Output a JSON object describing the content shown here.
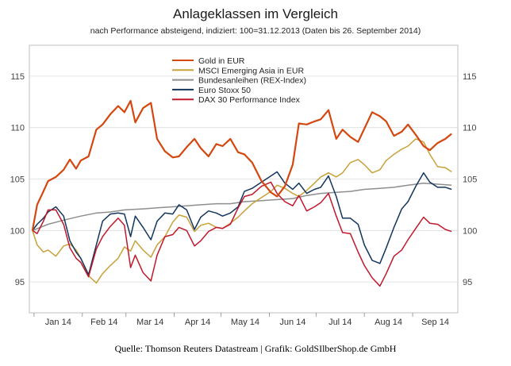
{
  "chart_data": {
    "type": "line",
    "title": "Anlageklassen im Vergleich",
    "subtitle": "nach Performance absteigend, indiziert: 100=31.12.2013 (Daten bis 26. September 2014)",
    "source": "Quelle: Thomson Reuters Datastream  | Grafik: GoldSIlberShop.de GmbH",
    "xlabel": "",
    "ylabel": "",
    "ylim": [
      92,
      118
    ],
    "yticks": [
      95,
      100,
      105,
      110,
      115
    ],
    "x_start": "2013-12-31",
    "x_end": "2014-09-26",
    "month_labels": [
      "Jan 14",
      "Feb 14",
      "Mar 14",
      "Apr 14",
      "May 14",
      "Jun 14",
      "Jul 14",
      "Aug 14",
      "Sep 14"
    ],
    "grid": true,
    "legend_position": "top-center",
    "series": [
      {
        "name": "Gold in EUR",
        "color": "#d4470f",
        "x": [
          "2013-12-31",
          "2014-01-03",
          "2014-01-07",
          "2014-01-10",
          "2014-01-15",
          "2014-01-20",
          "2014-01-24",
          "2014-01-28",
          "2014-01-31",
          "2014-02-05",
          "2014-02-10",
          "2014-02-14",
          "2014-02-19",
          "2014-02-24",
          "2014-02-28",
          "2014-03-04",
          "2014-03-07",
          "2014-03-12",
          "2014-03-17",
          "2014-03-21",
          "2014-03-26",
          "2014-03-31",
          "2014-04-04",
          "2014-04-09",
          "2014-04-14",
          "2014-04-18",
          "2014-04-23",
          "2014-04-28",
          "2014-05-02",
          "2014-05-07",
          "2014-05-12",
          "2014-05-16",
          "2014-05-21",
          "2014-05-27",
          "2014-06-02",
          "2014-06-06",
          "2014-06-11",
          "2014-06-16",
          "2014-06-20",
          "2014-06-25",
          "2014-06-30",
          "2014-07-04",
          "2014-07-09",
          "2014-07-14",
          "2014-07-18",
          "2014-07-23",
          "2014-07-28",
          "2014-08-01",
          "2014-08-06",
          "2014-08-11",
          "2014-08-15",
          "2014-08-20",
          "2014-08-25",
          "2014-08-29",
          "2014-09-03",
          "2014-09-08",
          "2014-09-12",
          "2014-09-17",
          "2014-09-22",
          "2014-09-26"
        ],
        "values": [
          100.0,
          102.5,
          103.8,
          104.8,
          105.2,
          105.9,
          106.9,
          106.0,
          106.8,
          107.2,
          109.8,
          110.3,
          111.3,
          112.1,
          111.5,
          112.6,
          110.5,
          111.9,
          112.4,
          108.9,
          107.7,
          107.1,
          107.2,
          108.1,
          108.9,
          108.0,
          107.2,
          108.4,
          108.2,
          108.9,
          107.6,
          107.4,
          106.6,
          104.8,
          103.7,
          103.3,
          104.3,
          106.4,
          110.4,
          110.3,
          110.6,
          110.8,
          111.7,
          108.9,
          109.8,
          109.1,
          108.6,
          109.9,
          111.5,
          111.1,
          110.6,
          109.2,
          109.6,
          110.3,
          109.3,
          108.2,
          107.8,
          108.5,
          108.9,
          109.4
        ]
      },
      {
        "name": "MSCI Emerging Asia in EUR",
        "color": "#c8a139",
        "x": [
          "2013-12-31",
          "2014-01-03",
          "2014-01-07",
          "2014-01-10",
          "2014-01-15",
          "2014-01-20",
          "2014-01-24",
          "2014-01-28",
          "2014-01-31",
          "2014-02-05",
          "2014-02-10",
          "2014-02-14",
          "2014-02-19",
          "2014-02-24",
          "2014-02-28",
          "2014-03-04",
          "2014-03-07",
          "2014-03-12",
          "2014-03-17",
          "2014-03-21",
          "2014-03-26",
          "2014-03-31",
          "2014-04-04",
          "2014-04-09",
          "2014-04-14",
          "2014-04-18",
          "2014-04-23",
          "2014-04-28",
          "2014-05-02",
          "2014-05-07",
          "2014-05-12",
          "2014-05-16",
          "2014-05-21",
          "2014-05-27",
          "2014-06-02",
          "2014-06-06",
          "2014-06-11",
          "2014-06-16",
          "2014-06-20",
          "2014-06-25",
          "2014-06-30",
          "2014-07-04",
          "2014-07-09",
          "2014-07-14",
          "2014-07-18",
          "2014-07-23",
          "2014-07-28",
          "2014-08-01",
          "2014-08-06",
          "2014-08-11",
          "2014-08-15",
          "2014-08-20",
          "2014-08-25",
          "2014-08-29",
          "2014-09-03",
          "2014-09-08",
          "2014-09-12",
          "2014-09-17",
          "2014-09-22",
          "2014-09-26"
        ],
        "values": [
          100.0,
          98.6,
          97.9,
          98.1,
          97.5,
          98.5,
          98.7,
          98.1,
          97.3,
          95.6,
          94.9,
          95.8,
          96.6,
          97.3,
          98.4,
          98.0,
          99.0,
          98.1,
          97.4,
          98.6,
          99.4,
          100.8,
          101.5,
          101.3,
          99.9,
          100.5,
          100.7,
          100.3,
          100.2,
          100.7,
          101.3,
          101.9,
          102.6,
          103.2,
          103.8,
          104.4,
          104.1,
          103.6,
          103.3,
          103.9,
          104.6,
          105.2,
          105.6,
          105.2,
          105.6,
          106.6,
          106.9,
          106.4,
          105.6,
          105.9,
          106.8,
          107.4,
          107.9,
          108.2,
          108.9,
          108.6,
          107.4,
          106.2,
          106.1,
          105.7
        ]
      },
      {
        "name": "Bundesanleihen (REX-Index)",
        "color": "#8e8e8e",
        "x": [
          "2013-12-31",
          "2014-01-10",
          "2014-01-20",
          "2014-01-31",
          "2014-02-10",
          "2014-02-19",
          "2014-02-28",
          "2014-03-12",
          "2014-03-21",
          "2014-03-31",
          "2014-04-09",
          "2014-04-18",
          "2014-04-28",
          "2014-05-07",
          "2014-05-16",
          "2014-05-27",
          "2014-06-06",
          "2014-06-16",
          "2014-06-25",
          "2014-07-04",
          "2014-07-14",
          "2014-07-23",
          "2014-08-01",
          "2014-08-11",
          "2014-08-20",
          "2014-08-29",
          "2014-09-08",
          "2014-09-17",
          "2014-09-26"
        ],
        "values": [
          100.0,
          100.6,
          101.0,
          101.4,
          101.7,
          101.8,
          102.0,
          102.1,
          102.2,
          102.3,
          102.4,
          102.5,
          102.6,
          102.6,
          102.8,
          102.9,
          103.0,
          103.1,
          103.4,
          103.6,
          103.7,
          103.8,
          104.0,
          104.1,
          104.2,
          104.4,
          104.6,
          104.5,
          104.4
        ]
      },
      {
        "name": "Euro Stoxx 50",
        "color": "#13365f",
        "x": [
          "2013-12-31",
          "2014-01-03",
          "2014-01-07",
          "2014-01-10",
          "2014-01-15",
          "2014-01-20",
          "2014-01-24",
          "2014-01-28",
          "2014-01-31",
          "2014-02-05",
          "2014-02-10",
          "2014-02-14",
          "2014-02-19",
          "2014-02-24",
          "2014-02-28",
          "2014-03-04",
          "2014-03-07",
          "2014-03-12",
          "2014-03-17",
          "2014-03-21",
          "2014-03-26",
          "2014-03-31",
          "2014-04-04",
          "2014-04-09",
          "2014-04-14",
          "2014-04-18",
          "2014-04-23",
          "2014-04-28",
          "2014-05-02",
          "2014-05-07",
          "2014-05-12",
          "2014-05-16",
          "2014-05-21",
          "2014-05-27",
          "2014-06-02",
          "2014-06-06",
          "2014-06-11",
          "2014-06-16",
          "2014-06-20",
          "2014-06-25",
          "2014-06-30",
          "2014-07-04",
          "2014-07-09",
          "2014-07-14",
          "2014-07-18",
          "2014-07-23",
          "2014-07-28",
          "2014-08-01",
          "2014-08-06",
          "2014-08-11",
          "2014-08-15",
          "2014-08-20",
          "2014-08-25",
          "2014-08-29",
          "2014-09-03",
          "2014-09-08",
          "2014-09-12",
          "2014-09-17",
          "2014-09-22",
          "2014-09-26"
        ],
        "values": [
          100.0,
          100.6,
          101.2,
          101.8,
          102.3,
          101.4,
          99.0,
          97.9,
          97.3,
          95.7,
          98.6,
          100.9,
          101.6,
          101.7,
          101.6,
          99.4,
          101.4,
          100.3,
          99.1,
          100.9,
          101.7,
          101.6,
          102.5,
          102.0,
          100.1,
          101.3,
          101.9,
          101.7,
          101.4,
          101.7,
          102.3,
          103.8,
          104.1,
          104.7,
          105.3,
          105.7,
          104.6,
          104.0,
          104.6,
          103.6,
          104.0,
          104.2,
          105.3,
          103.3,
          101.2,
          101.2,
          100.6,
          98.6,
          97.1,
          96.8,
          98.3,
          100.3,
          102.1,
          102.8,
          104.3,
          105.6,
          104.7,
          104.2,
          104.2,
          104.0
        ]
      },
      {
        "name": "DAX 30 Performance Index",
        "color": "#c0182c",
        "x": [
          "2013-12-31",
          "2014-01-03",
          "2014-01-07",
          "2014-01-10",
          "2014-01-15",
          "2014-01-20",
          "2014-01-24",
          "2014-01-28",
          "2014-01-31",
          "2014-02-05",
          "2014-02-10",
          "2014-02-14",
          "2014-02-19",
          "2014-02-24",
          "2014-02-28",
          "2014-03-04",
          "2014-03-07",
          "2014-03-12",
          "2014-03-17",
          "2014-03-21",
          "2014-03-26",
          "2014-03-31",
          "2014-04-04",
          "2014-04-09",
          "2014-04-14",
          "2014-04-18",
          "2014-04-23",
          "2014-04-28",
          "2014-05-02",
          "2014-05-07",
          "2014-05-12",
          "2014-05-16",
          "2014-05-21",
          "2014-05-27",
          "2014-06-02",
          "2014-06-06",
          "2014-06-11",
          "2014-06-16",
          "2014-06-20",
          "2014-06-25",
          "2014-06-30",
          "2014-07-04",
          "2014-07-09",
          "2014-07-14",
          "2014-07-18",
          "2014-07-23",
          "2014-07-28",
          "2014-08-01",
          "2014-08-06",
          "2014-08-11",
          "2014-08-15",
          "2014-08-20",
          "2014-08-25",
          "2014-08-29",
          "2014-09-03",
          "2014-09-08",
          "2014-09-12",
          "2014-09-17",
          "2014-09-22",
          "2014-09-26"
        ],
        "values": [
          100.0,
          99.7,
          100.9,
          102.0,
          102.0,
          100.6,
          98.3,
          97.3,
          96.9,
          95.5,
          98.2,
          99.4,
          100.4,
          101.2,
          100.5,
          96.4,
          97.6,
          95.9,
          95.1,
          97.6,
          99.4,
          99.6,
          100.3,
          100.0,
          98.5,
          99.0,
          99.9,
          100.3,
          100.2,
          100.6,
          102.2,
          103.3,
          103.5,
          104.3,
          104.7,
          103.6,
          102.8,
          102.4,
          103.4,
          101.9,
          102.3,
          102.7,
          103.6,
          101.4,
          99.8,
          99.7,
          97.9,
          96.6,
          95.4,
          94.6,
          95.8,
          97.5,
          98.1,
          99.1,
          100.2,
          101.3,
          100.7,
          100.6,
          100.1,
          99.9
        ]
      }
    ]
  }
}
